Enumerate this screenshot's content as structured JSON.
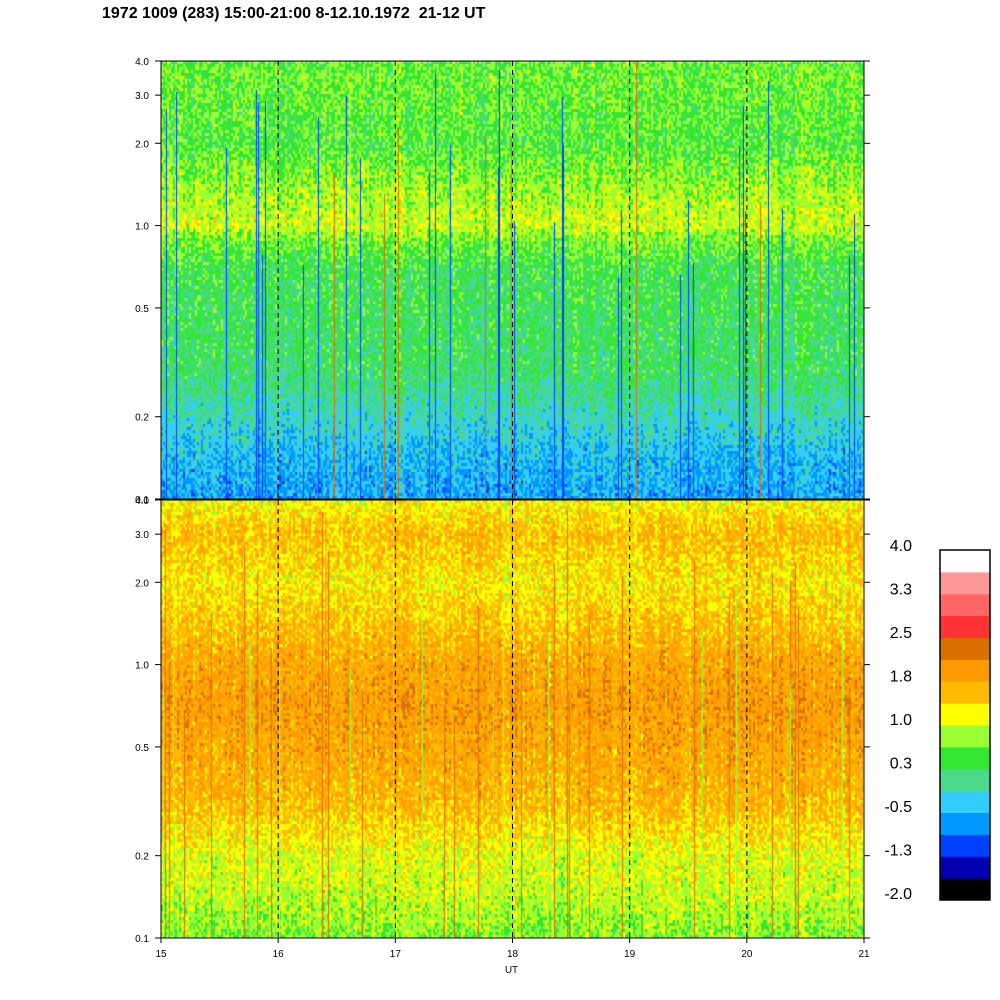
{
  "chart_data": {
    "type": "heatmap",
    "title": "1972 1009 (283) 15:00-21:00 8-12.10.1972  21-12 UT",
    "xlabel": "UT",
    "x_range": [
      15,
      21
    ],
    "x_ticks": [
      "15",
      "16",
      "17",
      "18",
      "19",
      "20",
      "21"
    ],
    "dashed_vertical_lines_at": [
      16,
      17,
      18,
      19,
      20
    ],
    "y_scale": "log",
    "y_range": [
      0.1,
      4.0
    ],
    "y_ticks": [
      {
        "value": 0.1,
        "label": "0.1"
      },
      {
        "value": 0.2,
        "label": "0.2"
      },
      {
        "value": 0.5,
        "label": "0.5"
      },
      {
        "value": 1.0,
        "label": "1.0"
      },
      {
        "value": 2.0,
        "label": "2.0"
      },
      {
        "value": 3.0,
        "label": "3.0"
      },
      {
        "value": 4.0,
        "label": "4.0"
      }
    ],
    "panels": [
      {
        "name": "upper",
        "profile": [
          {
            "y": 0.1,
            "level": -0.6
          },
          {
            "y": 0.15,
            "level": -0.4
          },
          {
            "y": 0.2,
            "level": -0.1
          },
          {
            "y": 0.3,
            "level": 0.25
          },
          {
            "y": 0.5,
            "level": 0.3
          },
          {
            "y": 0.7,
            "level": 0.35
          },
          {
            "y": 0.9,
            "level": 0.7
          },
          {
            "y": 1.0,
            "level": 1.0
          },
          {
            "y": 1.3,
            "level": 0.85
          },
          {
            "y": 2.0,
            "level": 0.5
          },
          {
            "y": 3.0,
            "level": 0.6
          },
          {
            "y": 4.0,
            "level": 0.6
          }
        ]
      },
      {
        "name": "lower",
        "profile": [
          {
            "y": 0.1,
            "level": 0.7
          },
          {
            "y": 0.15,
            "level": 1.0
          },
          {
            "y": 0.2,
            "level": 1.1
          },
          {
            "y": 0.3,
            "level": 1.6
          },
          {
            "y": 0.5,
            "level": 1.8
          },
          {
            "y": 0.7,
            "level": 1.9
          },
          {
            "y": 1.0,
            "level": 1.8
          },
          {
            "y": 1.5,
            "level": 1.5
          },
          {
            "y": 2.0,
            "level": 1.3
          },
          {
            "y": 3.0,
            "level": 1.6
          },
          {
            "y": 4.0,
            "level": 1.2
          }
        ]
      }
    ],
    "colorbar": {
      "labels": [
        "4.0",
        "3.3",
        "2.5",
        "1.8",
        "1.0",
        "0.3",
        "-0.5",
        "-1.3",
        "-2.0"
      ],
      "levels": [
        {
          "min": -2.0,
          "max": -1.625,
          "color": "#000000"
        },
        {
          "min": -1.625,
          "max": -1.25,
          "color": "#0000b0"
        },
        {
          "min": -1.25,
          "max": -0.875,
          "color": "#0040ff"
        },
        {
          "min": -0.875,
          "max": -0.5,
          "color": "#0099ff"
        },
        {
          "min": -0.5,
          "max": -0.125,
          "color": "#33ccff"
        },
        {
          "min": -0.125,
          "max": 0.25,
          "color": "#4cd98c"
        },
        {
          "min": 0.25,
          "max": 0.625,
          "color": "#33e633"
        },
        {
          "min": 0.625,
          "max": 1.0,
          "color": "#99ff33"
        },
        {
          "min": 1.0,
          "max": 1.375,
          "color": "#ffff00"
        },
        {
          "min": 1.375,
          "max": 1.75,
          "color": "#ffbb00"
        },
        {
          "min": 1.75,
          "max": 2.125,
          "color": "#ff9900"
        },
        {
          "min": 2.125,
          "max": 2.5,
          "color": "#d97000"
        },
        {
          "min": 2.5,
          "max": 2.875,
          "color": "#ff3333"
        },
        {
          "min": 2.875,
          "max": 3.25,
          "color": "#ff6666"
        },
        {
          "min": 3.25,
          "max": 3.625,
          "color": "#ff9999"
        },
        {
          "min": 3.625,
          "max": 4.0,
          "color": "#ffffff"
        }
      ]
    }
  }
}
